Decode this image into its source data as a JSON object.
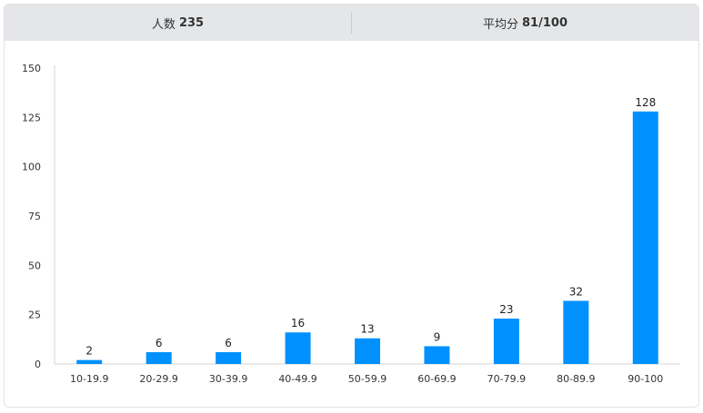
{
  "header": {
    "stats": [
      {
        "label": "人数",
        "value": "235"
      },
      {
        "label": "平均分",
        "value": "81/100"
      }
    ]
  },
  "chart_data": {
    "type": "bar",
    "categories": [
      "10-19.9",
      "20-29.9",
      "30-39.9",
      "40-49.9",
      "50-59.9",
      "60-69.9",
      "70-79.9",
      "80-89.9",
      "90-100"
    ],
    "values": [
      2,
      6,
      6,
      16,
      13,
      9,
      23,
      32,
      128
    ],
    "ylim": [
      0,
      150
    ],
    "yticks": [
      0,
      25,
      50,
      75,
      100,
      125,
      150
    ],
    "grid": false,
    "legend": "none",
    "bar_color": "#0091ff"
  }
}
